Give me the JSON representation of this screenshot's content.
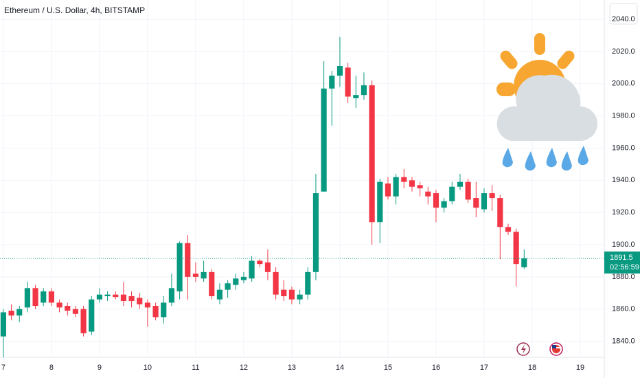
{
  "chart_data": {
    "type": "candlestick",
    "title": "Ethereum / U.S. Dollar, 4h, BITSTAMP",
    "up_color": "#089981",
    "down_color": "#f23645",
    "x": [
      7,
      7.1667,
      7.3333,
      7.5,
      7.6667,
      7.8333,
      8,
      8.1667,
      8.3333,
      8.5,
      8.6667,
      8.8333,
      9,
      9.1667,
      9.3333,
      9.5,
      9.6667,
      9.8333,
      10,
      10.1667,
      10.3333,
      10.5,
      10.6667,
      10.8333,
      11,
      11.1667,
      11.3333,
      11.5,
      11.6667,
      11.8333,
      12,
      12.1667,
      12.3333,
      12.5,
      12.6667,
      12.8333,
      13,
      13.1667,
      13.3333,
      13.5,
      13.6667,
      13.8333,
      14,
      14.1667,
      14.3333,
      14.5,
      14.6667,
      14.8333,
      15,
      15.1667,
      15.3333,
      15.5,
      15.6667,
      15.8333,
      16,
      16.1667,
      16.3333,
      16.5,
      16.6667,
      16.8333,
      17,
      17.1667,
      17.3333,
      17.5,
      17.6667,
      17.8333
    ],
    "open": [
      1843,
      1859,
      1856,
      1861,
      1873,
      1864,
      1871,
      1864,
      1862,
      1860,
      1860,
      1846,
      1866,
      1868,
      1869,
      1869,
      1868,
      1867,
      1864,
      1862,
      1855,
      1864,
      1871,
      1901,
      1882,
      1879,
      1883,
      1866,
      1872,
      1875,
      1878,
      1879,
      1890,
      1889,
      1883,
      1872,
      1872,
      1866,
      1869,
      1883,
      1933,
      1997,
      2005,
      2010,
      1991,
      1993,
      1999,
      1914,
      1938,
      1930,
      1942,
      1940,
      1937,
      1933,
      1932,
      1923,
      1927,
      1936,
      1939,
      1929,
      1922,
      1932,
      1929,
      1911,
      1908,
      1886
    ],
    "high": [
      1860,
      1863,
      1862,
      1877,
      1875,
      1873,
      1873,
      1866,
      1864,
      1862,
      1862,
      1868,
      1873,
      1871,
      1871,
      1877,
      1871,
      1870,
      1866,
      1864,
      1868,
      1882,
      1902,
      1906,
      1889,
      1890,
      1885,
      1876,
      1878,
      1882,
      1883,
      1893,
      1891,
      1897,
      1886,
      1878,
      1874,
      1872,
      1886,
      1944,
      2014,
      2008,
      2029,
      2013,
      2005,
      2007,
      2002,
      1941,
      1942,
      1944,
      1947,
      1942,
      1939,
      1936,
      1934,
      1929,
      1939,
      1944,
      1941,
      1939,
      1935,
      1937,
      1931,
      1913,
      1910,
      1897
    ],
    "low": [
      1830,
      1853,
      1852,
      1858,
      1860,
      1862,
      1862,
      1858,
      1856,
      1855,
      1843,
      1844,
      1864,
      1865,
      1866,
      1862,
      1861,
      1860,
      1849,
      1853,
      1851,
      1862,
      1866,
      1866,
      1877,
      1877,
      1866,
      1863,
      1867,
      1872,
      1876,
      1877,
      1886,
      1878,
      1866,
      1865,
      1863,
      1863,
      1866,
      1878,
      1933,
      1974,
      1998,
      1988,
      1985,
      1990,
      1900,
      1901,
      1928,
      1925,
      1935,
      1933,
      1930,
      1925,
      1914,
      1920,
      1925,
      1934,
      1926,
      1917,
      1920,
      1921,
      1891,
      1906,
      1874,
      1885
    ],
    "close": [
      1858,
      1856,
      1860,
      1873,
      1862,
      1871,
      1864,
      1861,
      1859,
      1857,
      1845,
      1866,
      1869,
      1869,
      1867.5,
      1865,
      1865,
      1863,
      1861,
      1855,
      1864,
      1873,
      1901,
      1880,
      1880,
      1883,
      1868,
      1872,
      1876,
      1879,
      1880,
      1890,
      1888,
      1883,
      1869,
      1868,
      1866,
      1869,
      1883,
      1932,
      1997,
      2005,
      2011,
      1992,
      1993,
      1999,
      1914,
      1939,
      1930,
      1942,
      1939,
      1936,
      1935,
      1930,
      1923,
      1927,
      1936,
      1939,
      1928,
      1923,
      1932,
      1929,
      1911,
      1908,
      1888,
      1891.5
    ],
    "xlim": [
      6.93,
      19.5
    ],
    "xticks": [
      7,
      8,
      9,
      10,
      11,
      12,
      13,
      14,
      15,
      16,
      17,
      18,
      19
    ],
    "ylim": [
      1830,
      2052
    ],
    "yticks": [
      {
        "value": 1840,
        "label": "1840.0"
      },
      {
        "value": 1860,
        "label": "1860.0"
      },
      {
        "value": 1880,
        "label": "1880.0"
      },
      {
        "value": 1900,
        "label": "1900.0"
      },
      {
        "value": 1920,
        "label": "1920.0"
      },
      {
        "value": 1940,
        "label": "1940.0"
      },
      {
        "value": 1960,
        "label": "1960.0"
      },
      {
        "value": 1980,
        "label": "1980.0"
      },
      {
        "value": 2000,
        "label": "2000.0"
      },
      {
        "value": 2020,
        "label": "2020.0"
      },
      {
        "value": 2040,
        "label": "2040.0"
      }
    ],
    "grid": true,
    "last_price": 1891.5,
    "countdown": "02:56:59"
  }
}
